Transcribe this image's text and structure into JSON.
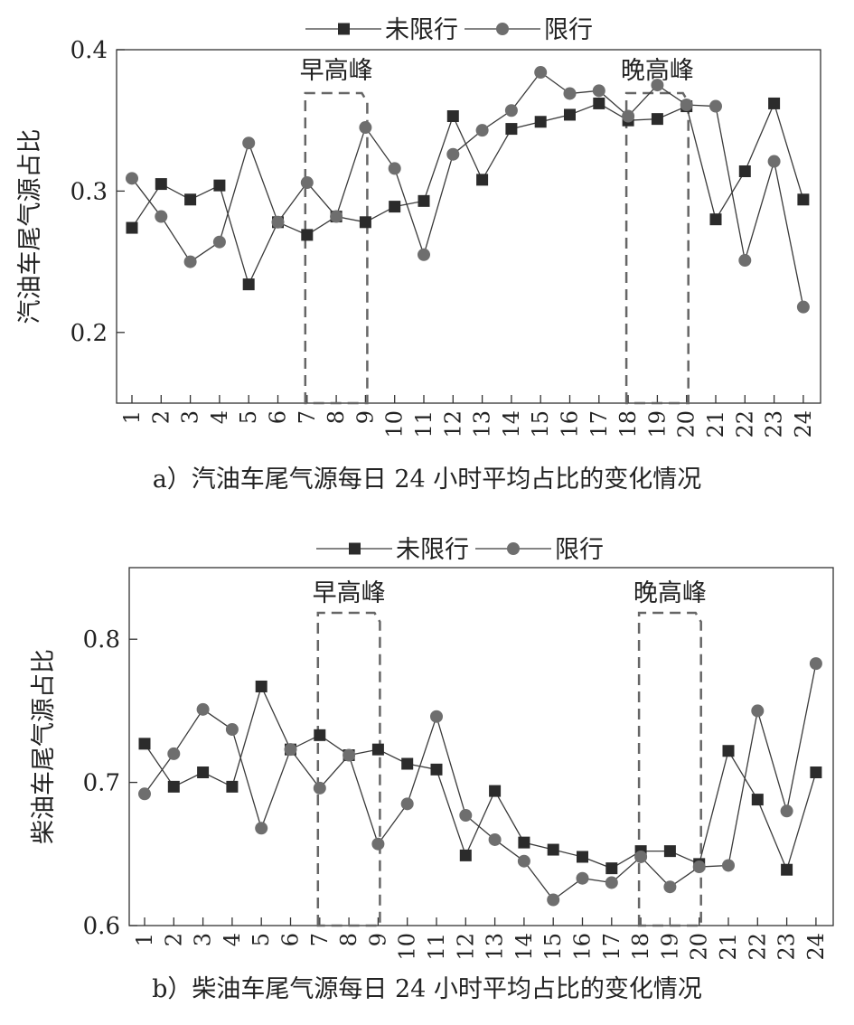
{
  "chart_data": [
    {
      "type": "line",
      "caption": "a）汽油车尾气源每日 24 小时平均占比的变化情况",
      "ylabel": "汽油车尾气源占比",
      "xlabel": "",
      "categories": [
        "1",
        "2",
        "3",
        "4",
        "5",
        "6",
        "7",
        "8",
        "9",
        "10",
        "11",
        "12",
        "13",
        "14",
        "15",
        "16",
        "17",
        "18",
        "19",
        "20",
        "21",
        "22",
        "23",
        "24"
      ],
      "ylim": [
        0.15,
        0.4
      ],
      "yticks": [
        0.2,
        0.3,
        0.4
      ],
      "ytick_labels": [
        "0.2",
        "0.3",
        "0.4"
      ],
      "legend_position": "top",
      "series": [
        {
          "name": "未限行",
          "marker": "square",
          "values": [
            0.274,
            0.305,
            0.294,
            0.304,
            0.234,
            0.278,
            0.269,
            0.282,
            0.278,
            0.289,
            0.293,
            0.353,
            0.308,
            0.344,
            0.349,
            0.354,
            0.362,
            0.35,
            0.351,
            0.36,
            0.28,
            0.314,
            0.362,
            0.294
          ]
        },
        {
          "name": "限行",
          "marker": "circle",
          "values": [
            0.309,
            0.282,
            0.25,
            0.264,
            0.334,
            0.278,
            0.306,
            0.282,
            0.345,
            0.316,
            0.255,
            0.326,
            0.343,
            0.357,
            0.384,
            0.369,
            0.371,
            0.353,
            0.375,
            0.361,
            0.36,
            0.251,
            0.321,
            0.218
          ]
        }
      ],
      "annotations": [
        {
          "text": "早高峰",
          "x_from": 7,
          "x_to": 9
        },
        {
          "text": "晚高峰",
          "x_from": 18,
          "x_to": 20
        }
      ]
    },
    {
      "type": "line",
      "caption": "b）柴油车尾气源每日 24 小时平均占比的变化情况",
      "ylabel": "柴油车尾气源占比",
      "xlabel": "",
      "categories": [
        "1",
        "2",
        "3",
        "4",
        "5",
        "6",
        "7",
        "8",
        "9",
        "10",
        "11",
        "12",
        "13",
        "14",
        "15",
        "16",
        "17",
        "18",
        "19",
        "20",
        "21",
        "22",
        "23",
        "24"
      ],
      "ylim": [
        0.6,
        0.85
      ],
      "yticks": [
        0.6,
        0.7,
        0.8
      ],
      "ytick_labels": [
        "0.6",
        "0.7",
        "0.8"
      ],
      "legend_position": "top",
      "series": [
        {
          "name": "未限行",
          "marker": "square",
          "values": [
            0.727,
            0.697,
            0.707,
            0.697,
            0.767,
            0.723,
            0.733,
            0.719,
            0.723,
            0.713,
            0.709,
            0.649,
            0.694,
            0.658,
            0.653,
            0.648,
            0.64,
            0.652,
            0.652,
            0.643,
            0.722,
            0.688,
            0.639,
            0.707
          ]
        },
        {
          "name": "限行",
          "marker": "circle",
          "values": [
            0.692,
            0.72,
            0.751,
            0.737,
            0.668,
            0.723,
            0.696,
            0.719,
            0.657,
            0.685,
            0.746,
            0.677,
            0.66,
            0.645,
            0.618,
            0.633,
            0.63,
            0.648,
            0.627,
            0.641,
            0.642,
            0.75,
            0.68,
            0.783
          ]
        }
      ],
      "annotations": [
        {
          "text": "早高峰",
          "x_from": 7,
          "x_to": 9
        },
        {
          "text": "晚高峰",
          "x_from": 18,
          "x_to": 20
        }
      ]
    }
  ],
  "colors": {
    "line": "#3a3a3a",
    "square_marker": "#2b2b2b",
    "circle_marker": "#6e6e6e",
    "axis": "#333333",
    "dash_box": "#666666"
  }
}
